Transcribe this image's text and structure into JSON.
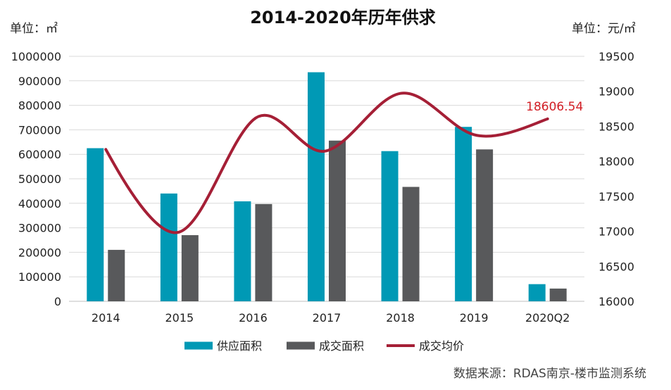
{
  "chart_data": {
    "type": "bar",
    "title": "2014-2020年历年供求",
    "left_unit": "单位：㎡",
    "right_unit": "单位：元/㎡",
    "categories": [
      "2014",
      "2015",
      "2016",
      "2017",
      "2018",
      "2019",
      "2020Q2"
    ],
    "left_axis": {
      "ylim": [
        0,
        1000000
      ],
      "ticks": [
        "0",
        "100000",
        "200000",
        "300000",
        "400000",
        "500000",
        "600000",
        "700000",
        "800000",
        "900000",
        "1000000"
      ]
    },
    "right_axis": {
      "ylim": [
        16000,
        19500
      ],
      "ticks": [
        "16000",
        "16500",
        "17000",
        "17500",
        "18000",
        "18500",
        "19000",
        "19500"
      ]
    },
    "series": [
      {
        "name": "供应面积",
        "type": "bar",
        "axis": "left",
        "color": "#0099b5",
        "values": [
          625000,
          440000,
          408000,
          935000,
          613000,
          712000,
          70000
        ]
      },
      {
        "name": "成交面积",
        "type": "bar",
        "axis": "left",
        "color": "#58595b",
        "values": [
          210000,
          270000,
          397000,
          656000,
          467000,
          620000,
          52000
        ]
      },
      {
        "name": "成交均价",
        "type": "line",
        "axis": "right",
        "color": "#a51f36",
        "values": [
          18170,
          16990,
          18590,
          18150,
          18970,
          18380,
          18606.54
        ]
      }
    ],
    "annotations": [
      {
        "text": "18606.54",
        "category": "2020Q2",
        "series": "成交均价"
      }
    ],
    "grid": true,
    "legend_position": "bottom"
  },
  "source": "数据来源：RDAS南京-楼市监测系统"
}
